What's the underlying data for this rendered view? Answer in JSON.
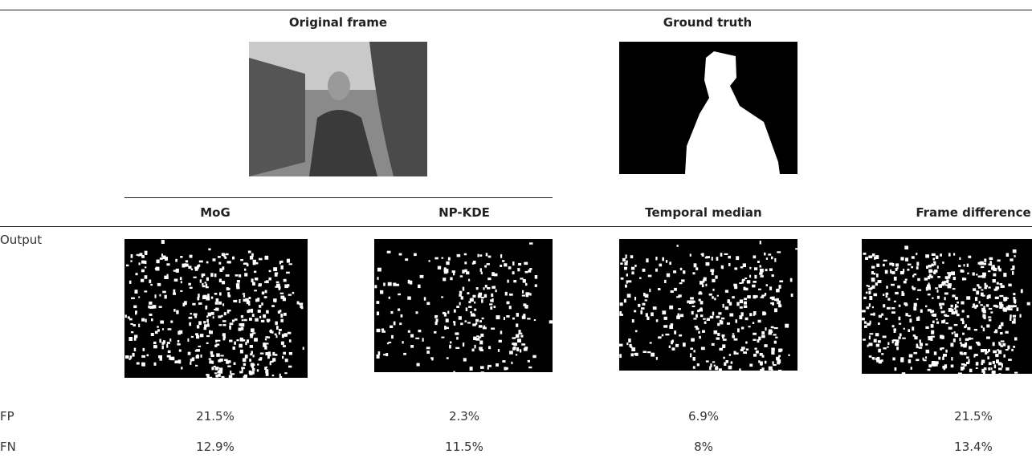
{
  "top": {
    "original_label": "Original frame",
    "ground_truth_label": "Ground truth"
  },
  "table": {
    "columns": [
      "MoG",
      "NP-KDE",
      "Temporal median",
      "Frame difference"
    ],
    "rows": [
      [
        "Output"
      ],
      [
        "FP",
        "21.5%",
        "2.3%",
        "6.9%",
        "21.5%"
      ],
      [
        "FN",
        "12.9%",
        "11.5%",
        "8%",
        "13.4%"
      ]
    ]
  }
}
